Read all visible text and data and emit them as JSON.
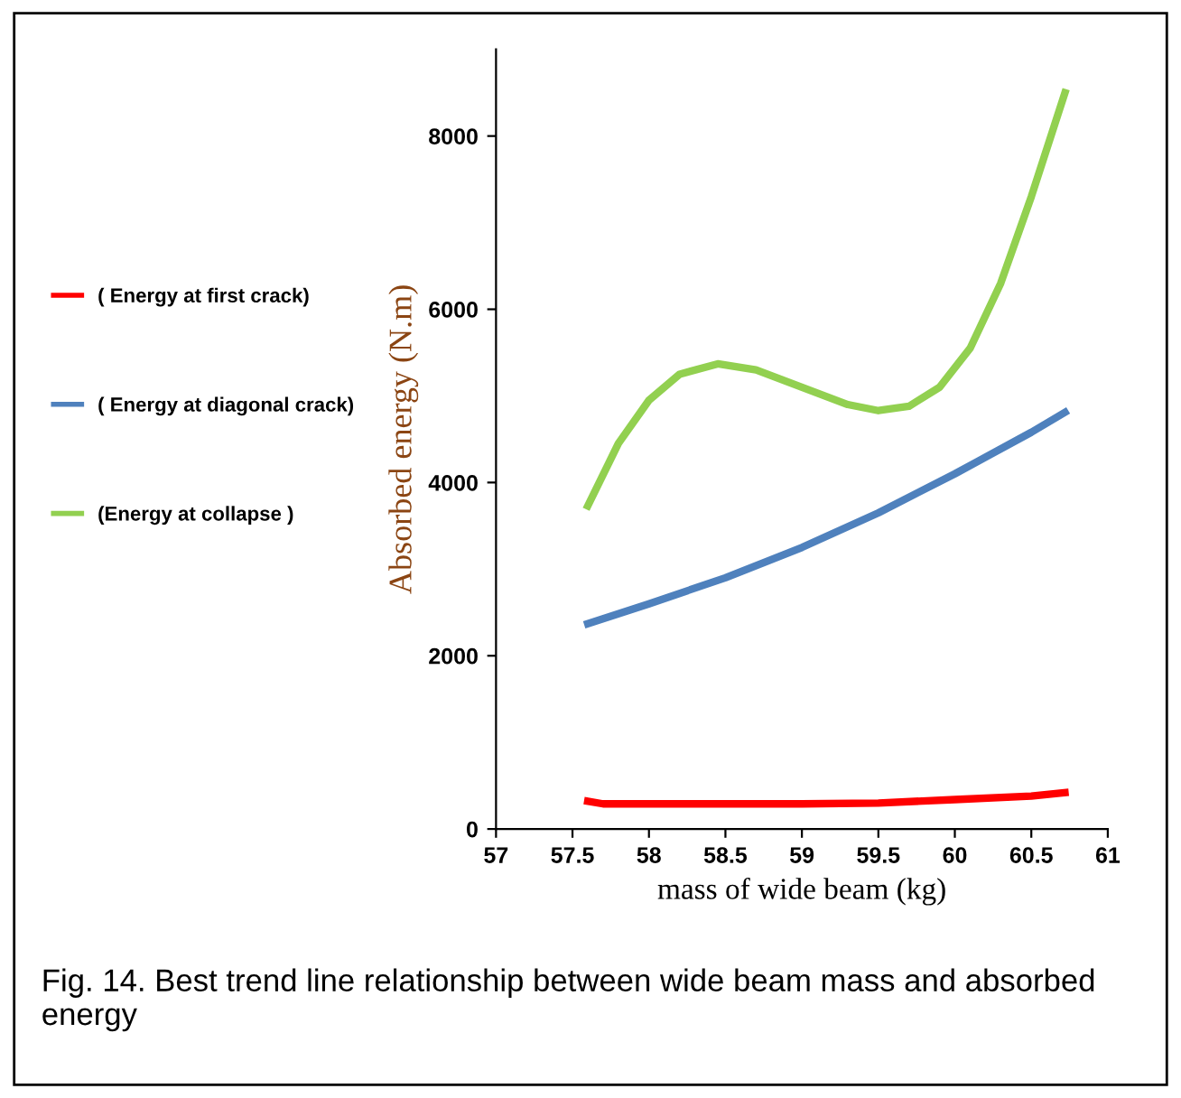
{
  "chart_data": {
    "type": "line",
    "xlabel": "mass of wide beam (kg)",
    "ylabel": "Absorbed energy (N.m)",
    "xlim": [
      57,
      61
    ],
    "xticks": [
      57,
      57.5,
      58,
      58.5,
      59,
      59.5,
      60,
      60.5,
      61
    ],
    "ylim": [
      0,
      9000
    ],
    "yticks": [
      0,
      2000,
      4000,
      6000,
      8000
    ],
    "grid": false,
    "legend": "left",
    "marker": "none",
    "line_style": "solid",
    "annotations": [
      "Fig. 14. Best trend line relationship between wide beam mass and absorbed energy"
    ],
    "series": [
      {
        "name": "( Energy at first crack)",
        "color": "#ff0000",
        "x": [
          57.6,
          57.7,
          58,
          58.5,
          59,
          59.5,
          60,
          60.5,
          60.72
        ],
        "values": [
          320,
          290,
          290,
          290,
          290,
          300,
          340,
          380,
          420
        ]
      },
      {
        "name": "( Energy at diagonal crack)",
        "color": "#4f81bd",
        "x": [
          57.6,
          58,
          58.5,
          59,
          59.5,
          60,
          60.5,
          60.72
        ],
        "values": [
          2370,
          2600,
          2900,
          3250,
          3650,
          4100,
          4580,
          4810
        ]
      },
      {
        "name": "(Energy at collapse )",
        "color": "#92d050",
        "x": [
          57.6,
          57.8,
          58,
          58.2,
          58.45,
          58.7,
          59,
          59.3,
          59.5,
          59.7,
          59.9,
          60.1,
          60.3,
          60.5,
          60.72
        ],
        "values": [
          3730,
          4450,
          4950,
          5250,
          5370,
          5300,
          5100,
          4900,
          4830,
          4880,
          5100,
          5550,
          6300,
          7300,
          8500
        ]
      }
    ]
  }
}
